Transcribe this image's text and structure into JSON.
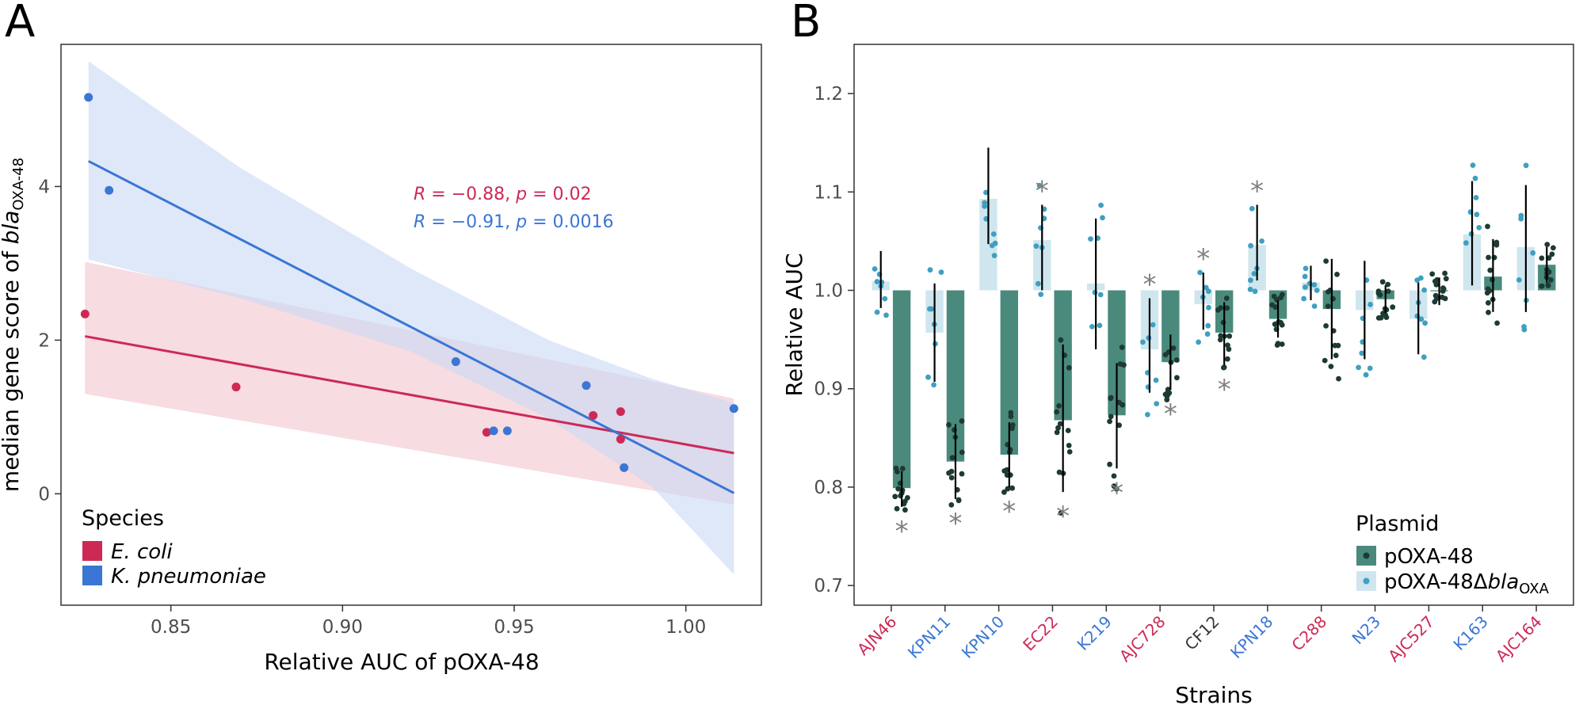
{
  "colors": {
    "ecoli": "#cc2a55",
    "kpneu": "#3a76d4",
    "ecoli_band": "#f2c4cf",
    "kpneu_band": "#c9d8f5",
    "poxa": "#4a8a7c",
    "poxa_dot": "#1d3a33",
    "delta": "#cfe6ee",
    "delta_dot": "#3f9fc1",
    "neutral": "#333333",
    "star": "#808080"
  },
  "chart_data": [
    {
      "panel": "A",
      "type": "scatter",
      "xlabel": "Relative AUC of pOXA-48",
      "ylabel": {
        "prefix": "median gene score of ",
        "italic": "bla",
        "sub": "OXA-48"
      },
      "xlim": [
        0.818,
        1.022
      ],
      "ylim": [
        -1.45,
        5.85
      ],
      "xticks": [
        {
          "v": 0.85,
          "label": "0.85"
        },
        {
          "v": 0.9,
          "label": "0.90"
        },
        {
          "v": 0.95,
          "label": "0.95"
        },
        {
          "v": 1.0,
          "label": "1.00"
        }
      ],
      "yticks": [
        {
          "v": 0,
          "label": "0"
        },
        {
          "v": 2,
          "label": "2"
        },
        {
          "v": 4,
          "label": "4"
        }
      ],
      "series": [
        {
          "name": "E. coli",
          "color_key": "ecoli",
          "points": [
            [
              0.825,
              2.34
            ],
            [
              0.869,
              1.39
            ],
            [
              0.942,
              0.8
            ],
            [
              0.973,
              1.02
            ],
            [
              0.981,
              1.07
            ],
            [
              0.981,
              0.71
            ]
          ],
          "fit": {
            "x": [
              0.825,
              1.014
            ],
            "y": [
              2.05,
              0.53
            ]
          },
          "ci": {
            "x": [
              0.825,
              1.014
            ],
            "upper": [
              3.02,
              1.24
            ],
            "lower": [
              1.3,
              -0.14
            ]
          },
          "stat": {
            "r_label": "R",
            "r_text": " = −0.88, ",
            "p_label": "p",
            "p_text": " = 0.02"
          }
        },
        {
          "name": "K. pneumoniae",
          "color_key": "kpneu",
          "points": [
            [
              0.826,
              5.16
            ],
            [
              0.832,
              3.95
            ],
            [
              0.933,
              1.72
            ],
            [
              0.944,
              0.82
            ],
            [
              0.948,
              0.82
            ],
            [
              0.971,
              1.41
            ],
            [
              0.982,
              0.34
            ],
            [
              1.014,
              1.11
            ]
          ],
          "fit": {
            "x": [
              0.826,
              1.014
            ],
            "y": [
              4.33,
              0.01
            ]
          },
          "ci": {
            "x": [
              0.826,
              0.87,
              0.92,
              0.96,
              0.99,
              1.014
            ],
            "upper": [
              5.63,
              4.25,
              2.93,
              2.0,
              1.5,
              1.18
            ],
            "lower": [
              3.05,
              2.55,
              1.85,
              0.98,
              0.1,
              -1.05
            ]
          },
          "stat": {
            "r_label": "R",
            "r_text": " = −0.91, ",
            "p_label": "p",
            "p_text": " = 0.0016"
          }
        }
      ],
      "legend": {
        "title": "Species",
        "items": [
          "E. coli",
          "K. pneumoniae"
        ]
      }
    },
    {
      "panel": "B",
      "type": "bar",
      "xlabel": "Strains",
      "ylabel": "Relative AUC",
      "ylim": [
        0.68,
        1.25
      ],
      "yticks": [
        {
          "v": 0.7,
          "label": "0.7"
        },
        {
          "v": 0.8,
          "label": "0.8"
        },
        {
          "v": 0.9,
          "label": "0.9"
        },
        {
          "v": 1.0,
          "label": "1.0"
        },
        {
          "v": 1.1,
          "label": "1.1"
        },
        {
          "v": 1.2,
          "label": "1.2"
        }
      ],
      "baseline": 1.0,
      "categories": [
        "AJN46",
        "KPN11",
        "KPN10",
        "EC22",
        "K219",
        "AJC728",
        "CF12",
        "KPN18",
        "C288",
        "N23",
        "AJC527",
        "K163",
        "AJC164"
      ],
      "category_colors": [
        "ecoli",
        "kpneu",
        "kpneu",
        "ecoli",
        "kpneu",
        "ecoli",
        "neutral",
        "kpneu",
        "ecoli",
        "kpneu",
        "ecoli",
        "kpneu",
        "ecoli"
      ],
      "series": [
        {
          "name": "pOXA-48ΔblaOXA",
          "values": [
            1.009,
            0.957,
            1.093,
            1.051,
            1.007,
            0.94,
            0.986,
            1.046,
            1.008,
            0.98,
            0.971,
            1.057,
            1.044
          ],
          "err_low": [
            0.982,
            0.907,
            1.047,
            1.0,
            0.94,
            0.896,
            0.96,
            1.01,
            0.99,
            0.93,
            0.935,
            1.005,
            0.978
          ],
          "err_high": [
            1.04,
            1.007,
            1.145,
            1.087,
            1.073,
            0.992,
            1.018,
            1.087,
            1.025,
            1.03,
            1.008,
            1.111,
            1.107
          ],
          "stars": [
            false,
            false,
            false,
            true,
            false,
            true,
            true,
            true,
            false,
            false,
            false,
            false,
            false
          ]
        },
        {
          "name": "pOXA-48",
          "values": [
            0.799,
            0.826,
            0.833,
            0.868,
            0.873,
            0.927,
            0.957,
            0.971,
            0.981,
            0.991,
            0.999,
            1.014,
            1.026
          ],
          "err_low": [
            0.78,
            0.788,
            0.8,
            0.795,
            0.819,
            0.899,
            0.924,
            0.952,
            0.93,
            0.977,
            0.985,
            0.978,
            1.008
          ],
          "err_high": [
            0.816,
            0.864,
            0.866,
            0.945,
            0.926,
            0.955,
            0.988,
            0.99,
            1.032,
            1.005,
            1.013,
            1.052,
            1.044
          ],
          "stars": [
            true,
            true,
            true,
            true,
            true,
            true,
            true,
            false,
            false,
            false,
            false,
            false,
            false
          ]
        }
      ],
      "legend": {
        "title": "Plasmid",
        "items": [
          {
            "label": "pOXA-48"
          },
          {
            "label_prefix": "pOXA-48Δ",
            "label_italic": "bla",
            "label_sub": "OXA"
          }
        ]
      }
    }
  ],
  "panels": {
    "a_label": "A",
    "b_label": "B"
  },
  "star_glyph": "*"
}
